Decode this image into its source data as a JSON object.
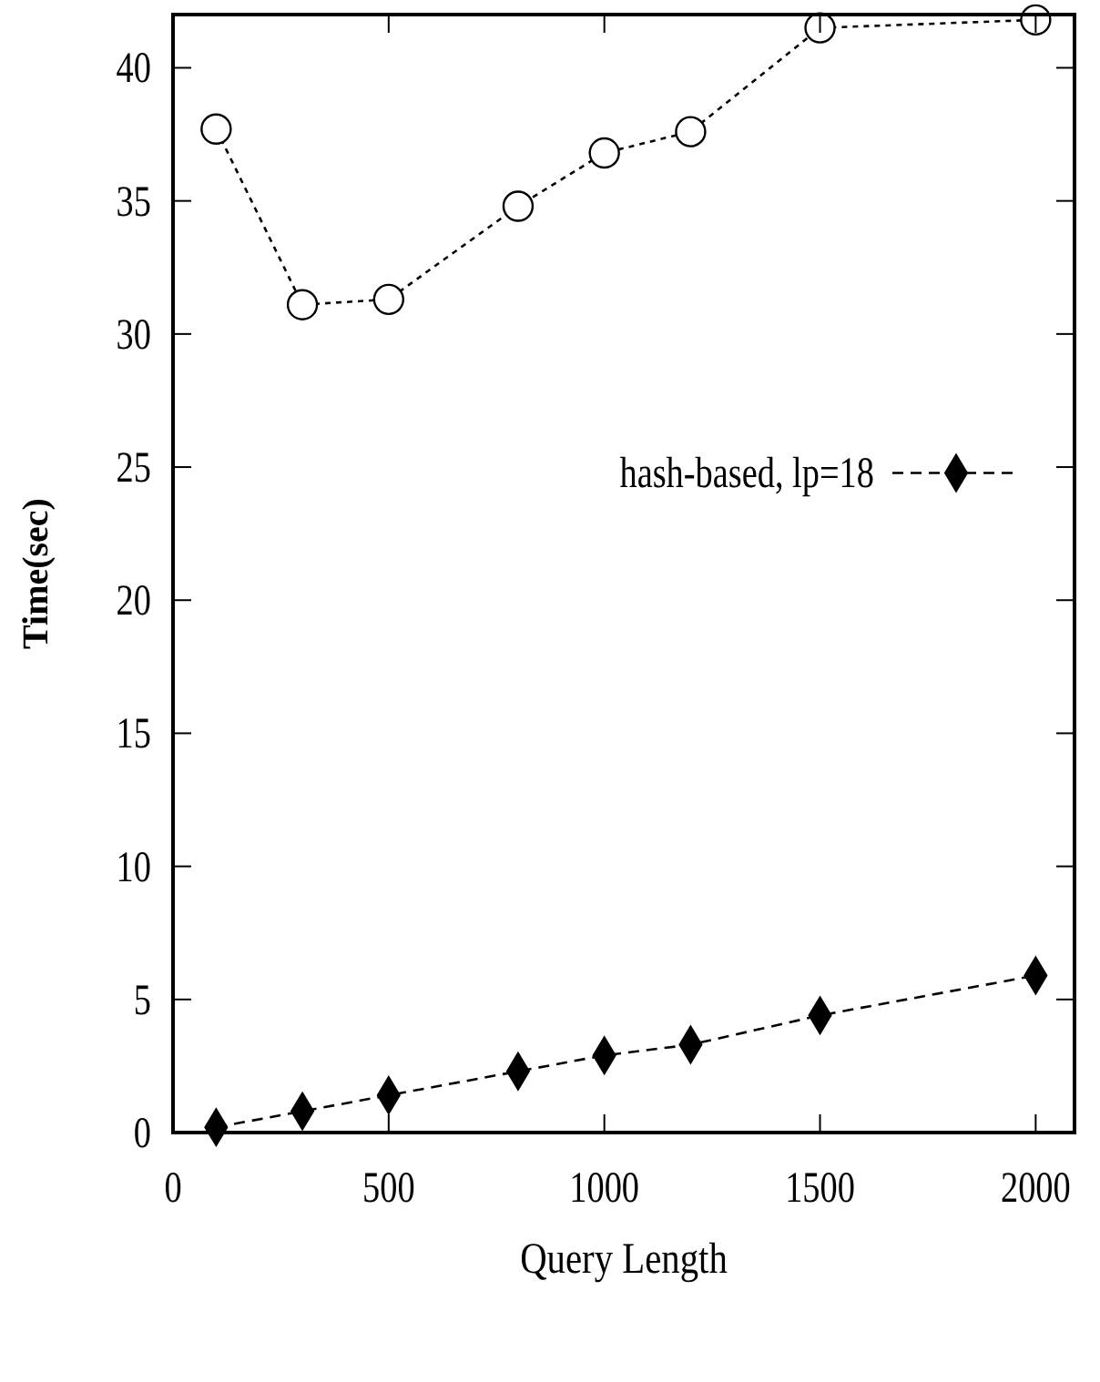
{
  "chart_data": {
    "type": "line",
    "xlabel": "Query Length",
    "ylabel": "Time(sec)",
    "xlim": [
      0,
      2090
    ],
    "ylim": [
      0,
      42
    ],
    "xticks": [
      0,
      500,
      1000,
      1500,
      2000
    ],
    "yticks": [
      0,
      5,
      10,
      15,
      20,
      25,
      30,
      35,
      40
    ],
    "grid": false,
    "legend": "right",
    "series": [
      {
        "name": "hash-based, lp=18",
        "color": "#000000",
        "marker": "diamond",
        "line_style": "dashed",
        "x": [
          100,
          300,
          500,
          800,
          1000,
          1200,
          1500,
          2000
        ],
        "values": [
          0.2,
          0.8,
          1.4,
          2.3,
          2.9,
          3.3,
          4.4,
          5.9
        ]
      },
      {
        "color": "#000000",
        "marker": "circle",
        "line_style": "dotted",
        "x": [
          100,
          300,
          500,
          800,
          1000,
          1200,
          1500,
          2000
        ],
        "values": [
          37.7,
          31.1,
          31.3,
          34.8,
          36.8,
          37.6,
          41.5,
          41.8
        ]
      }
    ]
  }
}
